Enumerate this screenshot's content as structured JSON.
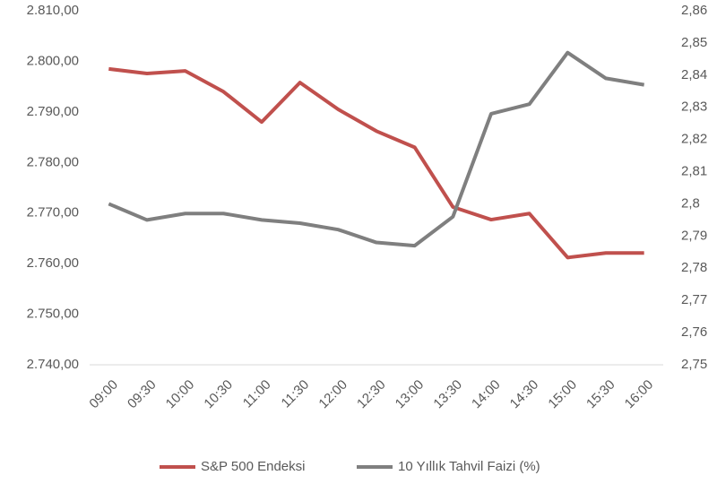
{
  "chart_data": {
    "type": "line",
    "categories": [
      "09:00",
      "09:30",
      "10:00",
      "10:30",
      "11:00",
      "11:30",
      "12:00",
      "12:30",
      "13:00",
      "13:30",
      "14:00",
      "14:30",
      "15:00",
      "15:30",
      "16:00"
    ],
    "series": [
      {
        "name": "S&P 500 Endeksi",
        "color": "#c0504d",
        "axis": "y",
        "values": [
          2798.5,
          2797.6,
          2798.1,
          2794.0,
          2788.0,
          2795.8,
          2790.5,
          2786.2,
          2783.0,
          2771.2,
          2768.7,
          2769.9,
          2761.2,
          2762.1,
          2762.1
        ]
      },
      {
        "name": "10 Yıllık Tahvil Faizi (%)",
        "color": "#7f7f7f",
        "axis": "y2",
        "values": [
          2.8,
          2.795,
          2.797,
          2.797,
          2.795,
          2.794,
          2.792,
          2.788,
          2.787,
          2.796,
          2.828,
          2.831,
          2.847,
          2.839,
          2.837
        ]
      }
    ],
    "ylim": [
      2740,
      2810
    ],
    "yticks": [
      {
        "value": 2740,
        "label": "2.740,00"
      },
      {
        "value": 2750,
        "label": "2.750,00"
      },
      {
        "value": 2760,
        "label": "2.760,00"
      },
      {
        "value": 2770,
        "label": "2.770,00"
      },
      {
        "value": 2780,
        "label": "2.780,00"
      },
      {
        "value": 2790,
        "label": "2.790,00"
      },
      {
        "value": 2800,
        "label": "2.800,00"
      },
      {
        "value": 2810,
        "label": "2.810,00"
      }
    ],
    "y2lim": [
      2.75,
      2.86
    ],
    "y2ticks": [
      {
        "value": 2.75,
        "label": "2,75"
      },
      {
        "value": 2.76,
        "label": "2,76"
      },
      {
        "value": 2.77,
        "label": "2,77"
      },
      {
        "value": 2.78,
        "label": "2,78"
      },
      {
        "value": 2.79,
        "label": "2,79"
      },
      {
        "value": 2.8,
        "label": "2,8"
      },
      {
        "value": 2.81,
        "label": "2,81"
      },
      {
        "value": 2.82,
        "label": "2,82"
      },
      {
        "value": 2.83,
        "label": "2,83"
      },
      {
        "value": 2.84,
        "label": "2,84"
      },
      {
        "value": 2.85,
        "label": "2,85"
      },
      {
        "value": 2.86,
        "label": "2,86"
      }
    ],
    "grid": false,
    "legend": "bottom"
  }
}
